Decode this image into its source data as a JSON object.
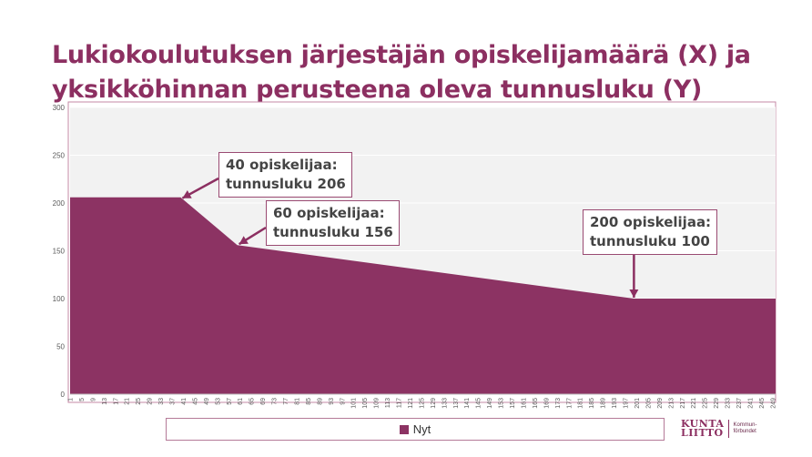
{
  "slide": {
    "title_line1": "Lukiokoulutuksen järjestäjän opiskelijamäärä (X) ja",
    "title_line2": "yksikköhinnan perusteena oleva tunnusluku (Y)"
  },
  "callouts": [
    {
      "line1": "40 opiskelijaa:",
      "line2": "tunnusluku 206"
    },
    {
      "line1": "60 opiskelijaa:",
      "line2": "tunnusluku 156"
    },
    {
      "line1": "200 opiskelijaa:",
      "line2": "tunnusluku 100"
    }
  ],
  "legend": {
    "label": "Nyt"
  },
  "logo": {
    "main_line1": "KUNTA",
    "main_line2": "LIITTO",
    "sub_line1": "Kommun-",
    "sub_line2": "förbundet"
  },
  "colors": {
    "area": "#8c3363",
    "title": "#8c2f61",
    "frame": "#c48aa6",
    "plot_bg": "#f2f2f2"
  },
  "chart_data": {
    "type": "area",
    "x_range": [
      1,
      250
    ],
    "ylim": [
      0,
      300
    ],
    "yticks": [
      0,
      50,
      100,
      150,
      200,
      250,
      300
    ],
    "xticks": [
      1,
      5,
      9,
      13,
      17,
      21,
      25,
      29,
      33,
      37,
      41,
      45,
      49,
      53,
      57,
      61,
      65,
      69,
      73,
      77,
      81,
      85,
      89,
      93,
      97,
      101,
      105,
      109,
      113,
      117,
      121,
      125,
      129,
      133,
      137,
      141,
      145,
      149,
      153,
      157,
      161,
      165,
      169,
      173,
      177,
      181,
      185,
      189,
      193,
      197,
      201,
      205,
      209,
      213,
      217,
      221,
      225,
      229,
      233,
      237,
      241,
      245,
      249
    ],
    "series": [
      {
        "name": "Nyt",
        "points": [
          [
            1,
            206
          ],
          [
            40,
            206
          ],
          [
            60,
            156
          ],
          [
            200,
            100
          ],
          [
            250,
            100
          ]
        ]
      }
    ],
    "grid": true,
    "legend_position": "bottom"
  }
}
